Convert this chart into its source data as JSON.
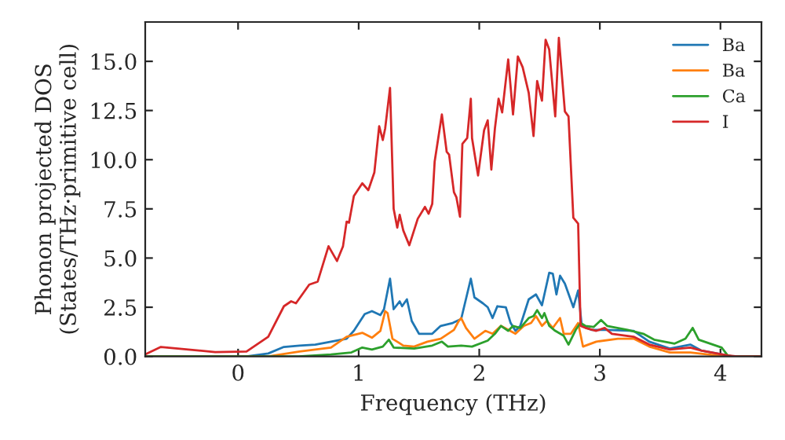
{
  "chart_data": {
    "type": "line",
    "xlabel": "Frequency (THz)",
    "ylabel": "Phonon projected DOS\n(States/THz·primitive cell)",
    "xlim": [
      -0.77,
      4.34
    ],
    "ylim": [
      0,
      17.0
    ],
    "xticks": [
      0,
      1,
      2,
      3,
      4
    ],
    "yticks": [
      {
        "value": 0,
        "label": "0.0"
      },
      {
        "value": 2.5,
        "label": "2.5"
      },
      {
        "value": 5,
        "label": "5.0"
      },
      {
        "value": 7.5,
        "label": "7.5"
      },
      {
        "value": 10,
        "label": "10.0"
      },
      {
        "value": 12.5,
        "label": "12.5"
      },
      {
        "value": 15,
        "label": "15.0"
      }
    ],
    "grid": false,
    "legend": "top right",
    "marker": "none",
    "line_style": "solid",
    "series": [
      {
        "name": "Ba",
        "color": "#1f77b4",
        "x": [
          -0.77,
          0.07,
          0.25,
          0.38,
          0.51,
          0.64,
          0.77,
          0.9,
          0.96,
          1.05,
          1.11,
          1.18,
          1.21,
          1.26,
          1.29,
          1.34,
          1.36,
          1.4,
          1.44,
          1.5,
          1.61,
          1.68,
          1.78,
          1.85,
          1.93,
          1.96,
          2.03,
          2.07,
          2.11,
          2.15,
          2.22,
          2.26,
          2.3,
          2.34,
          2.41,
          2.47,
          2.52,
          2.58,
          2.61,
          2.64,
          2.67,
          2.71,
          2.78,
          2.82,
          2.85,
          2.93,
          3.06,
          3.28,
          3.41,
          3.58,
          3.75,
          3.84,
          4.06
        ],
        "values": [
          0,
          0,
          0.15,
          0.48,
          0.55,
          0.6,
          0.75,
          0.9,
          1.3,
          2.15,
          2.3,
          2.1,
          2.4,
          3.95,
          2.4,
          2.8,
          2.55,
          2.9,
          1.8,
          1.15,
          1.15,
          1.55,
          1.7,
          1.9,
          3.95,
          3.0,
          2.7,
          2.5,
          1.95,
          2.55,
          2.5,
          1.7,
          1.3,
          1.55,
          2.9,
          3.15,
          2.6,
          4.25,
          4.2,
          3.15,
          4.1,
          3.7,
          2.5,
          3.35,
          1.55,
          1.35,
          1.35,
          1.3,
          0.75,
          0.4,
          0.6,
          0.3,
          0.05
        ]
      },
      {
        "name": "Ba",
        "color": "#ff7f0e",
        "x": [
          -0.77,
          0.25,
          0.51,
          0.77,
          0.9,
          1.03,
          1.11,
          1.18,
          1.22,
          1.24,
          1.28,
          1.37,
          1.46,
          1.57,
          1.68,
          1.79,
          1.83,
          1.85,
          1.89,
          1.96,
          2.05,
          2.11,
          2.18,
          2.24,
          2.3,
          2.37,
          2.43,
          2.47,
          2.52,
          2.56,
          2.61,
          2.67,
          2.7,
          2.76,
          2.82,
          2.86,
          2.97,
          3.15,
          3.28,
          3.41,
          3.58,
          3.75,
          3.97,
          4.1,
          4.34
        ],
        "values": [
          0,
          0,
          0.25,
          0.45,
          1.0,
          1.2,
          0.95,
          1.3,
          2.3,
          2.2,
          0.9,
          0.55,
          0.5,
          0.75,
          0.9,
          1.35,
          1.8,
          1.95,
          1.45,
          0.9,
          1.3,
          1.15,
          1.55,
          1.35,
          1.15,
          1.55,
          1.7,
          2.05,
          1.55,
          1.8,
          1.45,
          1.95,
          1.15,
          1.15,
          1.7,
          0.5,
          0.75,
          0.9,
          0.9,
          0.5,
          0.2,
          0.2,
          0.05,
          0,
          0
        ]
      },
      {
        "name": "Ca",
        "color": "#2ca02c",
        "x": [
          -0.77,
          0.5,
          0.77,
          0.94,
          1.03,
          1.11,
          1.2,
          1.25,
          1.29,
          1.46,
          1.61,
          1.69,
          1.74,
          1.85,
          1.94,
          2.07,
          2.13,
          2.18,
          2.24,
          2.28,
          2.34,
          2.41,
          2.45,
          2.48,
          2.52,
          2.54,
          2.58,
          2.63,
          2.7,
          2.74,
          2.8,
          2.84,
          2.88,
          2.95,
          3.01,
          3.06,
          3.23,
          3.36,
          3.45,
          3.62,
          3.71,
          3.77,
          3.82,
          4.01,
          4.06,
          4.1,
          4.34
        ],
        "values": [
          0,
          0,
          0.1,
          0.2,
          0.45,
          0.35,
          0.5,
          0.85,
          0.45,
          0.4,
          0.55,
          0.75,
          0.5,
          0.55,
          0.5,
          0.8,
          1.15,
          1.55,
          1.3,
          1.55,
          1.45,
          1.95,
          2.05,
          2.35,
          1.95,
          2.2,
          1.55,
          1.3,
          1.05,
          0.6,
          1.35,
          1.7,
          1.55,
          1.5,
          1.85,
          1.55,
          1.35,
          1.15,
          0.85,
          0.65,
          0.9,
          1.45,
          0.85,
          0.45,
          0.05,
          0,
          0
        ]
      },
      {
        "name": "I",
        "color": "#d62728",
        "x": [
          -0.77,
          -0.64,
          -0.19,
          0.07,
          0.25,
          0.38,
          0.44,
          0.48,
          0.59,
          0.66,
          0.75,
          0.82,
          0.87,
          0.9,
          0.92,
          0.96,
          1.03,
          1.08,
          1.13,
          1.17,
          1.2,
          1.22,
          1.26,
          1.29,
          1.32,
          1.34,
          1.37,
          1.42,
          1.49,
          1.55,
          1.58,
          1.61,
          1.63,
          1.69,
          1.73,
          1.75,
          1.79,
          1.81,
          1.84,
          1.86,
          1.9,
          1.93,
          1.94,
          1.99,
          2.04,
          2.07,
          2.1,
          2.13,
          2.16,
          2.19,
          2.24,
          2.28,
          2.32,
          2.36,
          2.41,
          2.45,
          2.48,
          2.52,
          2.55,
          2.58,
          2.63,
          2.66,
          2.71,
          2.74,
          2.78,
          2.82,
          2.84,
          2.88,
          2.97,
          3.04,
          3.1,
          3.28,
          3.41,
          3.58,
          3.75,
          3.84,
          4.06,
          4.14,
          4.34
        ],
        "values": [
          0.1,
          0.48,
          0.22,
          0.25,
          1.0,
          2.55,
          2.8,
          2.7,
          3.65,
          3.8,
          5.6,
          4.85,
          5.6,
          6.85,
          6.8,
          8.15,
          8.8,
          8.45,
          9.35,
          11.7,
          11.0,
          11.6,
          13.65,
          7.5,
          6.55,
          7.2,
          6.4,
          5.65,
          7.0,
          7.6,
          7.25,
          7.75,
          9.9,
          12.3,
          10.4,
          10.25,
          8.35,
          8.1,
          7.1,
          10.8,
          11.1,
          13.1,
          11.1,
          9.2,
          11.5,
          12.0,
          9.5,
          11.6,
          13.1,
          12.4,
          15.1,
          12.3,
          15.25,
          14.7,
          13.4,
          11.2,
          14.0,
          13.0,
          16.1,
          15.6,
          12.2,
          16.2,
          12.45,
          12.2,
          7.05,
          6.75,
          1.55,
          1.45,
          1.3,
          1.45,
          1.15,
          1.0,
          0.6,
          0.35,
          0.45,
          0.3,
          0.05,
          0,
          0
        ]
      }
    ]
  }
}
